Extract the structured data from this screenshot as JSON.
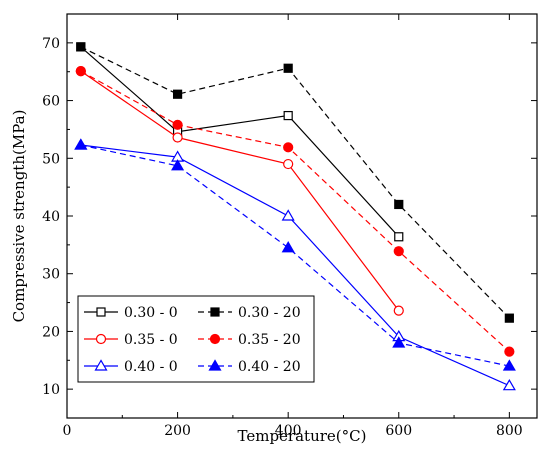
{
  "chart_data": {
    "type": "line",
    "title": "",
    "xlabel": "Temperature(°C)",
    "ylabel": "Compressive strength(MPa)",
    "xlim": [
      0,
      850
    ],
    "ylim": [
      5,
      75
    ],
    "xticks": [
      0,
      200,
      400,
      600,
      800
    ],
    "yticks": [
      10,
      20,
      30,
      40,
      50,
      60,
      70
    ],
    "legend_position": "bottom-left",
    "series": [
      {
        "name": "0.30 - 0",
        "x": [
          25,
          200,
          400,
          600,
          800
        ],
        "y": [
          69.3,
          54.6,
          57.4,
          36.4,
          null
        ],
        "color": "#000000",
        "dash": false,
        "marker": "square",
        "filled": false
      },
      {
        "name": "0.30 - 20",
        "x": [
          25,
          200,
          400,
          600,
          800
        ],
        "y": [
          69.3,
          61.1,
          65.6,
          42.0,
          22.3
        ],
        "color": "#000000",
        "dash": true,
        "marker": "square",
        "filled": true
      },
      {
        "name": "0.35 - 0",
        "x": [
          25,
          200,
          400,
          600,
          800
        ],
        "y": [
          65.1,
          53.6,
          49.0,
          23.6,
          null
        ],
        "color": "#ff0000",
        "dash": false,
        "marker": "circle",
        "filled": false
      },
      {
        "name": "0.35 - 20",
        "x": [
          25,
          200,
          400,
          600,
          800
        ],
        "y": [
          65.1,
          55.8,
          51.9,
          33.9,
          16.5
        ],
        "color": "#ff0000",
        "dash": true,
        "marker": "circle",
        "filled": true
      },
      {
        "name": "0.40 - 0",
        "x": [
          25,
          200,
          400,
          600,
          800
        ],
        "y": [
          52.3,
          50.2,
          40.0,
          19.1,
          10.6
        ],
        "color": "#0000ff",
        "dash": false,
        "marker": "triangle",
        "filled": false
      },
      {
        "name": "0.40 - 20",
        "x": [
          25,
          200,
          400,
          600,
          800
        ],
        "y": [
          52.3,
          48.7,
          34.5,
          18.0,
          14.0
        ],
        "color": "#0000ff",
        "dash": true,
        "marker": "triangle",
        "filled": true
      }
    ]
  }
}
